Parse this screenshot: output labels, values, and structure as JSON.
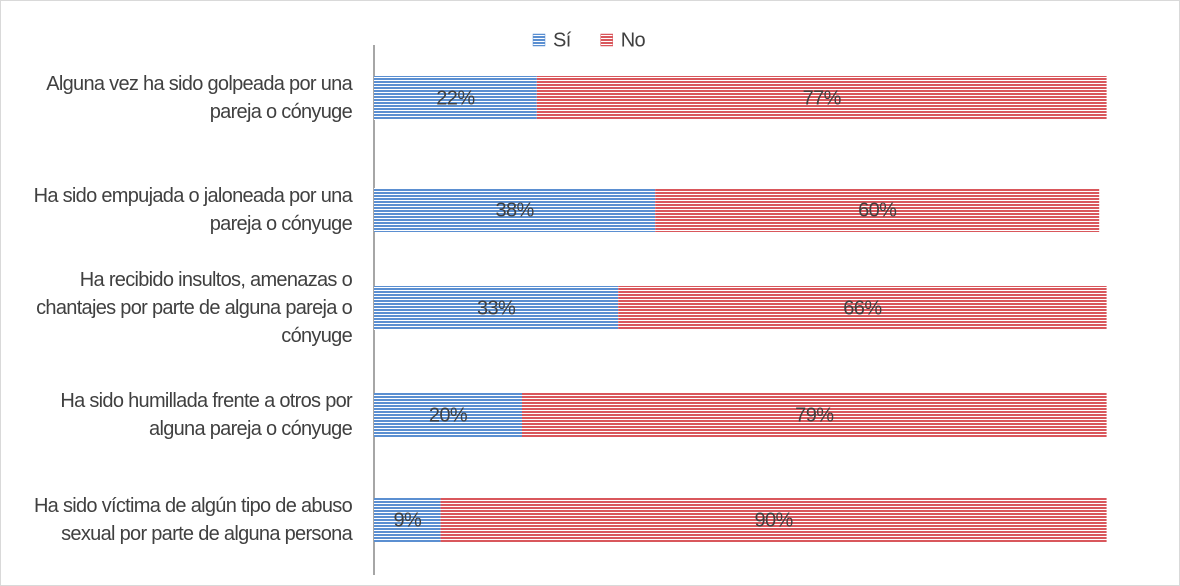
{
  "chart_data": {
    "type": "stacked_barh",
    "categories": [
      "Alguna vez ha sido golpeada por una pareja o cónyuge",
      "Ha sido empujada o jaloneada por una pareja o cónyuge",
      "Ha recibido insultos, amenazas o chantajes por parte de alguna pareja o cónyuge",
      "Ha sido humillada frente a otros por alguna pareja o cónyuge",
      "Ha sido víctima de algún tipo de abuso sexual por parte de alguna persona"
    ],
    "series": [
      {
        "name": "Sí",
        "color": "#5b8fd1",
        "values": [
          22,
          38,
          33,
          20,
          9
        ],
        "value_labels": [
          "22%",
          "38%",
          "33%",
          "20%",
          "9%"
        ]
      },
      {
        "name": "No",
        "color": "#d9575c",
        "values": [
          77,
          60,
          66,
          79,
          90
        ],
        "value_labels": [
          "77%",
          "60%",
          "66%",
          "79%",
          "90%"
        ]
      }
    ],
    "xlim": [
      0,
      100
    ],
    "legend": "top"
  }
}
